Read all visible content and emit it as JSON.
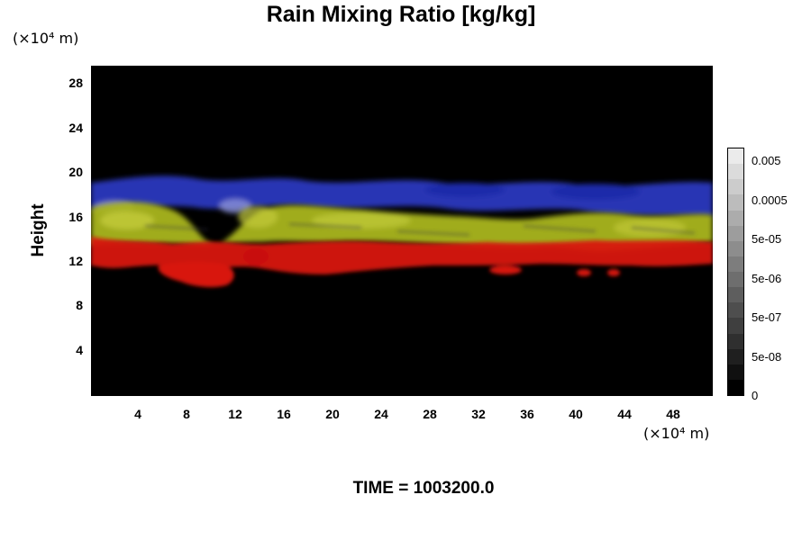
{
  "chart_data": {
    "type": "heatmap",
    "title": "Rain Mixing Ratio [kg/kg]",
    "ylabel": "Height",
    "xlabel": "",
    "x_unit": "(×10⁴ m)",
    "y_unit": "(×10⁴ m)",
    "xticks": [
      4,
      8,
      12,
      16,
      20,
      24,
      28,
      32,
      36,
      40,
      44,
      48
    ],
    "yticks": [
      4,
      8,
      12,
      16,
      20,
      24,
      28
    ],
    "xlim": [
      0,
      51
    ],
    "ylim": [
      0,
      30
    ],
    "colorbar": {
      "labels": [
        "0.005",
        "0.0005",
        "5e-05",
        "5e-06",
        "5e-07",
        "5e-08",
        "0"
      ],
      "levels": 16
    },
    "bands": [
      {
        "name": "blue",
        "color": "#2f3fd6",
        "ymin": 17,
        "ymax": 19.5
      },
      {
        "name": "yellow",
        "color": "#b7c21a",
        "ymin": 14,
        "ymax": 17
      },
      {
        "name": "red",
        "color": "#e01a10",
        "ymin": 10,
        "ymax": 14.5
      }
    ],
    "footer": "TIME = 1003200.0",
    "grid": false
  }
}
